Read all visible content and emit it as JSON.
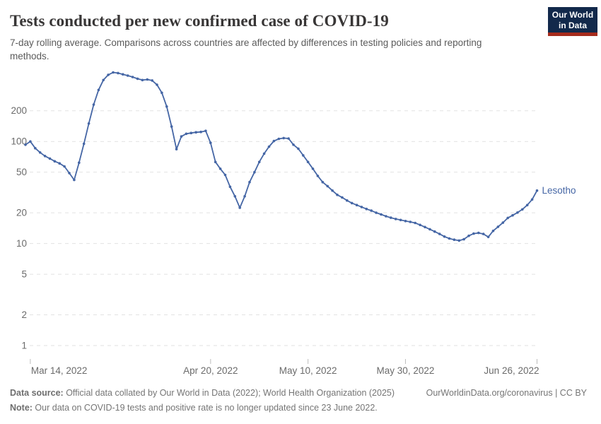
{
  "header": {
    "title": "Tests conducted per new confirmed case of COVID-19",
    "subtitle": "7-day rolling average. Comparisons across countries are affected by differences in testing policies and reporting methods.",
    "logo_line1": "Our World",
    "logo_line2": "in Data"
  },
  "chart_data": {
    "type": "line",
    "title": "Tests conducted per new confirmed case of COVID-19",
    "y_scale": "log",
    "grid": true,
    "y_ticks": [
      1,
      2,
      5,
      10,
      20,
      50,
      100,
      200
    ],
    "y_domain": [
      1,
      500
    ],
    "x_domain": [
      "2022-03-13",
      "2022-06-26"
    ],
    "x_ticks": [
      {
        "date": "2022-03-14",
        "label": "Mar 14, 2022"
      },
      {
        "date": "2022-04-20",
        "label": "Apr 20, 2022"
      },
      {
        "date": "2022-05-10",
        "label": "May 10, 2022"
      },
      {
        "date": "2022-05-30",
        "label": "May 30, 2022"
      },
      {
        "date": "2022-06-26",
        "label": "Jun 26, 2022"
      }
    ],
    "series": [
      {
        "name": "Lesotho",
        "color": "#4566a5",
        "points": [
          [
            "2022-03-13",
            93
          ],
          [
            "2022-03-14",
            100
          ],
          [
            "2022-03-15",
            86
          ],
          [
            "2022-03-16",
            78
          ],
          [
            "2022-03-17",
            72
          ],
          [
            "2022-03-18",
            68
          ],
          [
            "2022-03-19",
            64
          ],
          [
            "2022-03-20",
            61
          ],
          [
            "2022-03-21",
            57
          ],
          [
            "2022-03-22",
            49
          ],
          [
            "2022-03-23",
            42
          ],
          [
            "2022-03-24",
            62
          ],
          [
            "2022-03-25",
            95
          ],
          [
            "2022-03-26",
            150
          ],
          [
            "2022-03-27",
            230
          ],
          [
            "2022-03-28",
            320
          ],
          [
            "2022-03-29",
            400
          ],
          [
            "2022-03-30",
            450
          ],
          [
            "2022-03-31",
            475
          ],
          [
            "2022-04-01",
            468
          ],
          [
            "2022-04-02",
            455
          ],
          [
            "2022-04-03",
            442
          ],
          [
            "2022-04-04",
            428
          ],
          [
            "2022-04-05",
            412
          ],
          [
            "2022-04-06",
            400
          ],
          [
            "2022-04-07",
            405
          ],
          [
            "2022-04-08",
            396
          ],
          [
            "2022-04-09",
            360
          ],
          [
            "2022-04-10",
            300
          ],
          [
            "2022-04-11",
            220
          ],
          [
            "2022-04-12",
            140
          ],
          [
            "2022-04-13",
            84
          ],
          [
            "2022-04-14",
            112
          ],
          [
            "2022-04-15",
            119
          ],
          [
            "2022-04-16",
            121
          ],
          [
            "2022-04-17",
            123
          ],
          [
            "2022-04-18",
            124
          ],
          [
            "2022-04-19",
            127
          ],
          [
            "2022-04-20",
            97
          ],
          [
            "2022-04-21",
            63
          ],
          [
            "2022-04-22",
            54
          ],
          [
            "2022-04-23",
            47
          ],
          [
            "2022-04-24",
            36
          ],
          [
            "2022-04-25",
            29
          ],
          [
            "2022-04-26",
            22.4
          ],
          [
            "2022-04-27",
            29
          ],
          [
            "2022-04-28",
            40
          ],
          [
            "2022-04-29",
            50
          ],
          [
            "2022-04-30",
            63
          ],
          [
            "2022-05-01",
            76
          ],
          [
            "2022-05-02",
            89
          ],
          [
            "2022-05-03",
            101
          ],
          [
            "2022-05-04",
            106
          ],
          [
            "2022-05-05",
            108
          ],
          [
            "2022-05-06",
            107
          ],
          [
            "2022-05-07",
            93
          ],
          [
            "2022-05-08",
            85
          ],
          [
            "2022-05-09",
            73
          ],
          [
            "2022-05-10",
            63
          ],
          [
            "2022-05-11",
            54
          ],
          [
            "2022-05-12",
            46
          ],
          [
            "2022-05-13",
            40
          ],
          [
            "2022-05-14",
            36.5
          ],
          [
            "2022-05-15",
            33
          ],
          [
            "2022-05-16",
            30
          ],
          [
            "2022-05-17",
            28.3
          ],
          [
            "2022-05-18",
            26.4
          ],
          [
            "2022-05-19",
            24.9
          ],
          [
            "2022-05-20",
            23.8
          ],
          [
            "2022-05-21",
            22.8
          ],
          [
            "2022-05-22",
            21.8
          ],
          [
            "2022-05-23",
            21
          ],
          [
            "2022-05-24",
            20
          ],
          [
            "2022-05-25",
            19.3
          ],
          [
            "2022-05-26",
            18.5
          ],
          [
            "2022-05-27",
            17.9
          ],
          [
            "2022-05-28",
            17.4
          ],
          [
            "2022-05-29",
            17
          ],
          [
            "2022-05-30",
            16.6
          ],
          [
            "2022-05-31",
            16.3
          ],
          [
            "2022-06-01",
            15.9
          ],
          [
            "2022-06-02",
            15.2
          ],
          [
            "2022-06-03",
            14.5
          ],
          [
            "2022-06-04",
            13.8
          ],
          [
            "2022-06-05",
            13.1
          ],
          [
            "2022-06-06",
            12.4
          ],
          [
            "2022-06-07",
            11.7
          ],
          [
            "2022-06-08",
            11.2
          ],
          [
            "2022-06-09",
            10.9
          ],
          [
            "2022-06-10",
            10.7
          ],
          [
            "2022-06-11",
            11
          ],
          [
            "2022-06-12",
            11.9
          ],
          [
            "2022-06-13",
            12.5
          ],
          [
            "2022-06-14",
            12.7
          ],
          [
            "2022-06-15",
            12.4
          ],
          [
            "2022-06-16",
            11.6
          ],
          [
            "2022-06-17",
            13.3
          ],
          [
            "2022-06-18",
            14.6
          ],
          [
            "2022-06-19",
            16
          ],
          [
            "2022-06-20",
            17.8
          ],
          [
            "2022-06-21",
            18.9
          ],
          [
            "2022-06-22",
            20.1
          ],
          [
            "2022-06-23",
            21.6
          ],
          [
            "2022-06-24",
            23.8
          ],
          [
            "2022-06-25",
            27
          ],
          [
            "2022-06-26",
            33
          ]
        ]
      }
    ],
    "legend_position": "end-of-line"
  },
  "footer": {
    "source_label": "Data source:",
    "source_text": " Official data collated by Our World in Data (2022); World Health Organization (2025)",
    "link_text": "OurWorldinData.org/coronavirus | CC BY",
    "note_label": "Note:",
    "note_text": " Our data on COVID-19 tests and positive rate is no longer updated since 23 June 2022."
  },
  "colors": {
    "line": "#4566a5",
    "grid": "#e2e2e2",
    "tick_text": "#6b6b6b",
    "axis_tick": "#bdbdbd",
    "title": "#383636",
    "subtitle": "#5b5b5b",
    "footer": "#757575",
    "logo_bg": "#12294b",
    "logo_red": "#a62b1c"
  }
}
